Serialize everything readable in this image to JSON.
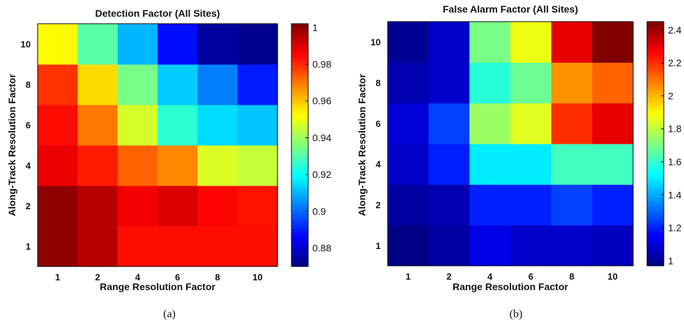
{
  "chart_data": [
    {
      "type": "heatmap",
      "title": "Detection Factor (All Sites)",
      "xlabel": "Range Resolution Factor",
      "ylabel": "Along-Track Resolution Factor",
      "caption": "(a)",
      "x_categories": [
        "1",
        "2",
        "4",
        "6",
        "8",
        "10"
      ],
      "y_categories": [
        "1",
        "2",
        "4",
        "6",
        "8",
        "10"
      ],
      "colorbar": {
        "range": [
          0.87,
          1.002
        ],
        "ticks": [
          0.88,
          0.9,
          0.92,
          0.94,
          0.96,
          0.98,
          1
        ],
        "tick_labels": [
          "0.88",
          "0.9",
          "0.92",
          "0.94",
          "0.96",
          "0.98",
          "1"
        ],
        "colormap": "jet"
      },
      "values": [
        [
          1.0,
          0.995,
          0.984,
          0.984,
          0.984,
          0.984
        ],
        [
          1.0,
          0.995,
          0.987,
          0.99,
          0.985,
          0.983
        ],
        [
          0.988,
          0.982,
          0.973,
          0.968,
          0.948,
          0.945
        ],
        [
          0.984,
          0.97,
          0.947,
          0.925,
          0.915,
          0.912
        ],
        [
          0.979,
          0.957,
          0.935,
          0.913,
          0.903,
          0.89
        ],
        [
          0.953,
          0.931,
          0.91,
          0.888,
          0.874,
          0.872
        ]
      ]
    },
    {
      "type": "heatmap",
      "title": "False Alarm Factor (All Sites)",
      "xlabel": "Range Resolution Factor",
      "ylabel": "Along-Track Resolution Factor",
      "caption": "(b)",
      "x_categories": [
        "1",
        "2",
        "4",
        "6",
        "8",
        "10"
      ],
      "y_categories": [
        "1",
        "2",
        "4",
        "6",
        "8",
        "10"
      ],
      "colorbar": {
        "range": [
          0.97,
          2.45
        ],
        "ticks": [
          1.0,
          1.2,
          1.4,
          1.6,
          1.8,
          2.0,
          2.2,
          2.4
        ],
        "tick_labels": [
          "1",
          "1.2",
          "1.4",
          "1.6",
          "1.8",
          "2",
          "2.2",
          "2.4"
        ],
        "colormap": "jet"
      },
      "values": [
        [
          0.98,
          1.02,
          1.12,
          1.08,
          1.08,
          1.06
        ],
        [
          1.02,
          1.04,
          1.2,
          1.2,
          1.25,
          1.2
        ],
        [
          1.08,
          1.2,
          1.5,
          1.5,
          1.62,
          1.62
        ],
        [
          1.1,
          1.25,
          1.75,
          1.85,
          2.2,
          2.3
        ],
        [
          1.04,
          1.08,
          1.58,
          1.68,
          2.05,
          2.12
        ],
        [
          1.0,
          1.08,
          1.7,
          1.87,
          2.3,
          2.45
        ]
      ]
    }
  ]
}
